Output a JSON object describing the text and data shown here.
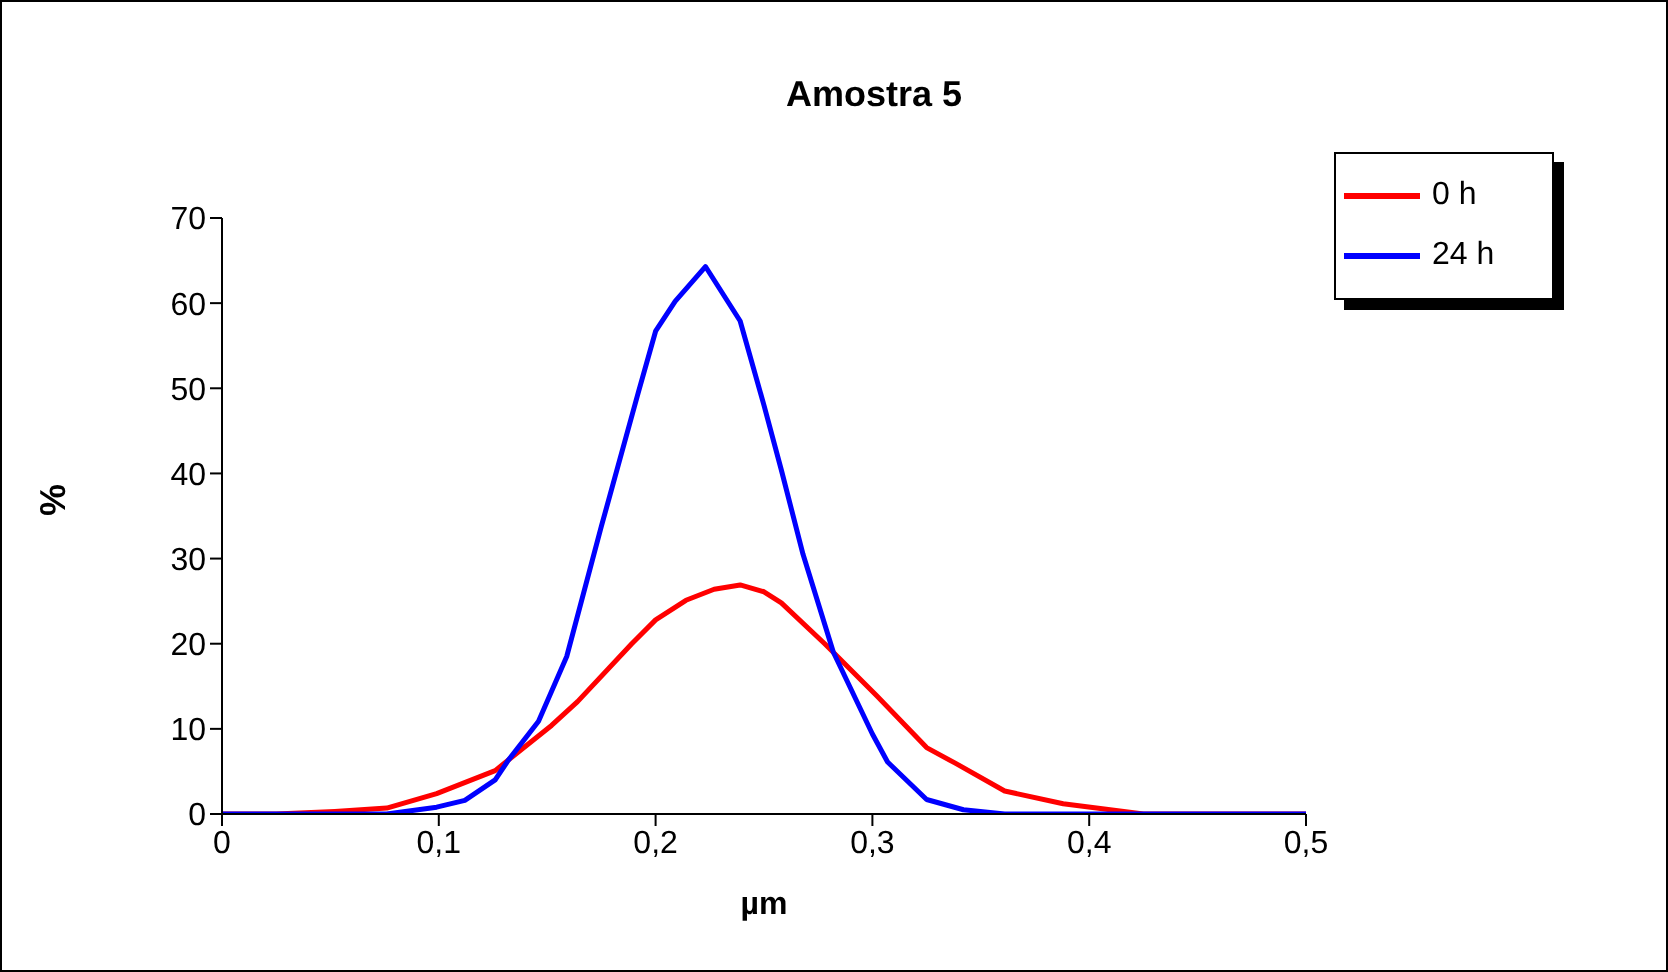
{
  "chart_data": {
    "type": "line",
    "title": "Amostra 5",
    "xlabel": "µm",
    "ylabel": "%",
    "legend": "top right",
    "grid": false,
    "marker": "none",
    "line_style": "solid",
    "xlim": [
      0,
      0.5
    ],
    "xticks": [
      0,
      {
        "value": 0.1,
        "label": "0,1"
      },
      {
        "value": 0.2,
        "label": "0,2"
      },
      {
        "value": 0.3,
        "label": "0,3"
      },
      {
        "value": 0.4,
        "label": "0,4"
      },
      {
        "value": 0.5,
        "label": "0,5"
      }
    ],
    "ylim": [
      0,
      70
    ],
    "yticks": [
      0,
      10,
      20,
      30,
      40,
      50,
      60,
      70
    ],
    "series": [
      {
        "name": "0 h",
        "color": "#ff0000",
        "x": [
          0,
          0.025,
          0.052,
          0.076,
          0.099,
          0.126,
          0.152,
          0.164,
          0.189,
          0.2,
          0.214,
          0.227,
          0.239,
          0.25,
          0.258,
          0.278,
          0.302,
          0.325,
          0.338,
          0.361,
          0.388,
          0.425,
          0.45,
          0.5
        ],
        "values": [
          0,
          0,
          0.3,
          0.7,
          2.4,
          5.1,
          10.4,
          13.2,
          20,
          22.8,
          25.1,
          26.4,
          26.9,
          26.1,
          24.8,
          20,
          13.9,
          7.8,
          6,
          2.7,
          1.2,
          0,
          0,
          0
        ]
      },
      {
        "name": "24 h",
        "color": "#0000ff",
        "x": [
          0,
          0.05,
          0.076,
          0.099,
          0.112,
          0.126,
          0.132,
          0.146,
          0.159,
          0.175,
          0.192,
          0.2,
          0.209,
          0.223,
          0.239,
          0.25,
          0.258,
          0.268,
          0.282,
          0.3,
          0.307,
          0.325,
          0.342,
          0.361,
          0.4,
          0.5
        ],
        "values": [
          0,
          0,
          0,
          0.8,
          1.6,
          4,
          6.3,
          10.9,
          18.5,
          33.8,
          49.5,
          56.7,
          60.2,
          64.3,
          57.9,
          48,
          40.4,
          30.5,
          19,
          9.4,
          6.1,
          1.7,
          0.5,
          0,
          0,
          0
        ]
      }
    ]
  }
}
